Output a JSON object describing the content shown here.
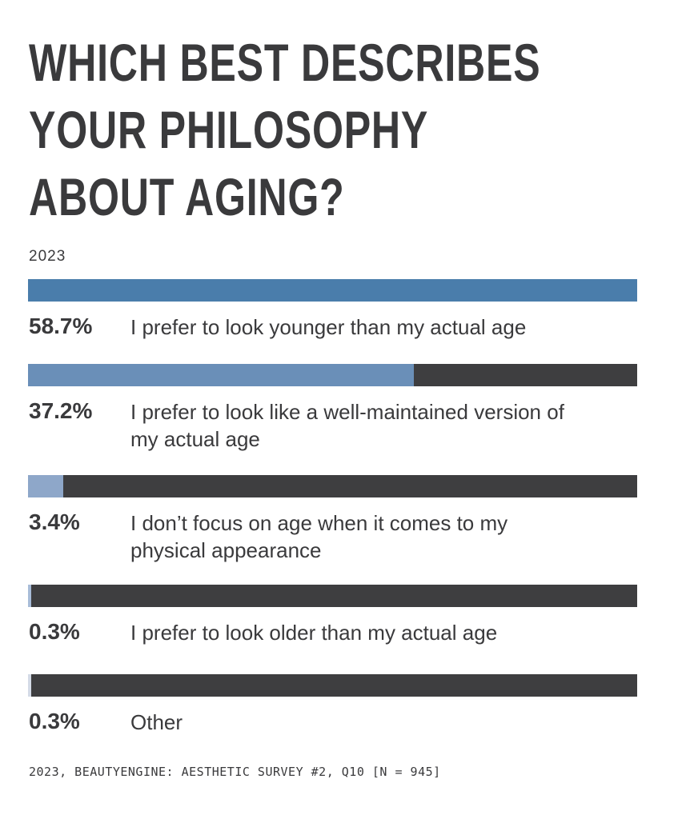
{
  "chart_data": {
    "type": "bar",
    "title": "WHICH BEST DESCRIBES YOUR PHILOSOPHY ABOUT AGING?",
    "subtitle": "2023",
    "categories": [
      "I prefer to look younger than my actual age",
      "I prefer to look like a well-maintained version of my actual age",
      "I don’t focus on age when it comes to my physical appearance",
      "I prefer to look older than my actual age",
      "Other"
    ],
    "values": [
      58.7,
      37.2,
      3.4,
      0.3,
      0.3
    ],
    "value_labels": [
      "58.7%",
      "37.2%",
      "3.4%",
      "0.3%",
      "0.3%"
    ],
    "colors": [
      "#4a7dab",
      "#6a8fb8",
      "#8ea7c9",
      "#a8bcd8",
      "#d4dbe7"
    ],
    "track_color": "#3e3e40",
    "xlim": [
      0,
      58.7
    ],
    "source": "2023, BEAUTYENGINE: AESTHETIC SURVEY #2, Q10 [N = 945]"
  }
}
